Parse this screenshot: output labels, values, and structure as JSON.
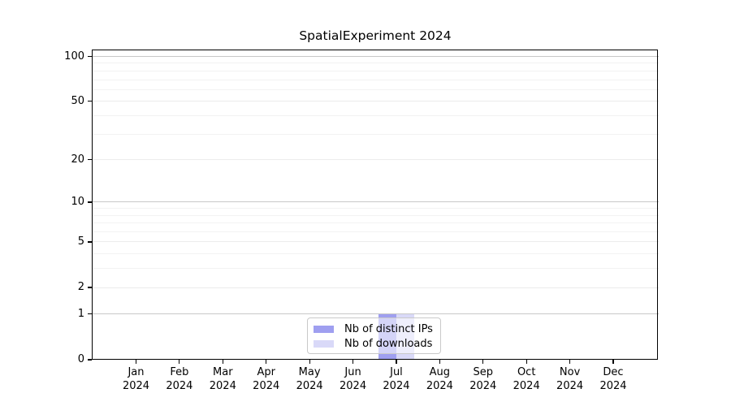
{
  "figure": {
    "title": "SpatialExperiment 2024"
  },
  "chart_data": {
    "type": "bar",
    "title": "SpatialExperiment 2024",
    "categories": [
      "Jan 2024",
      "Feb 2024",
      "Mar 2024",
      "Apr 2024",
      "May 2024",
      "Jun 2024",
      "Jul 2024",
      "Aug 2024",
      "Sep 2024",
      "Oct 2024",
      "Nov 2024",
      "Dec 2024"
    ],
    "series": [
      {
        "name": "Nb of distinct IPs",
        "color": "#9f9ff0",
        "values": [
          0,
          0,
          0,
          0,
          0,
          0,
          1,
          0,
          0,
          0,
          0,
          0
        ]
      },
      {
        "name": "Nb of downloads",
        "color": "#d9d9f8",
        "values": [
          0,
          0,
          0,
          0,
          0,
          0,
          1,
          0,
          0,
          0,
          0,
          0
        ]
      }
    ],
    "xlabel": "",
    "ylabel": "",
    "yscale": "log1p",
    "ylim": [
      0,
      112
    ],
    "yticks": [
      0,
      1,
      2,
      5,
      10,
      20,
      50,
      100
    ],
    "minor_gridlines": [
      3,
      4,
      6,
      7,
      8,
      9,
      30,
      40,
      60,
      70,
      80,
      90
    ],
    "emphasized_gridlines": [
      1,
      10,
      100
    ],
    "grid": true,
    "legend_position": "bottom-center",
    "colors": {
      "grid_emphasized": "#c8c8c8",
      "grid_major": "#ececec",
      "grid_minor": "#f2f2f2",
      "spine": "#000000",
      "text": "#000000",
      "legend_border": "#c9c9c9",
      "background": "#ffffff"
    }
  }
}
